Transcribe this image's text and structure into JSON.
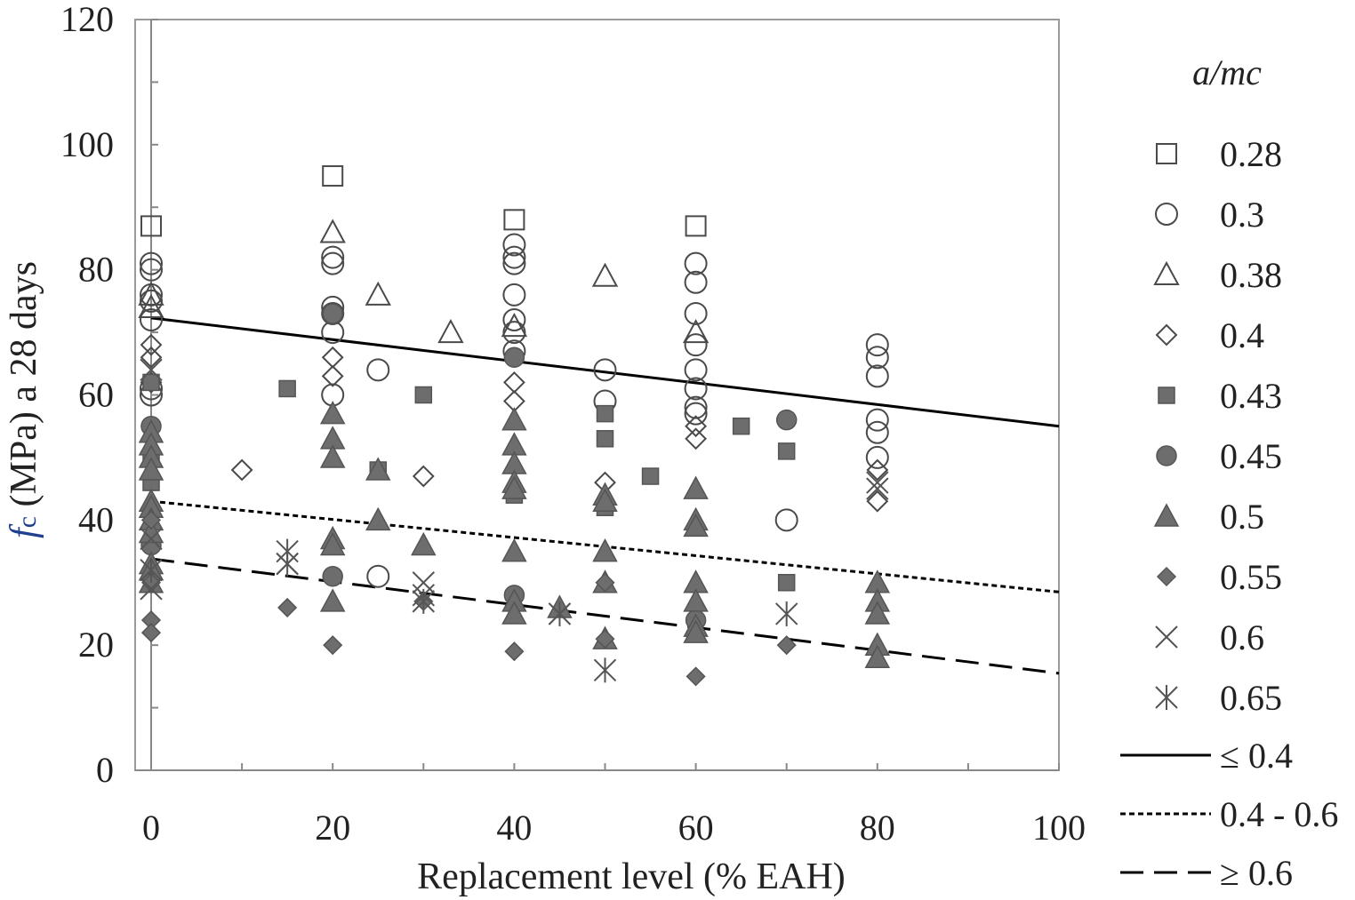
{
  "chart_data": {
    "type": "scatter",
    "xlabel": "Replacement level (% EAH)",
    "ylabel": {
      "symbol": "f",
      "subscript": "c",
      "rest": " (MPa) a 28 days"
    },
    "xlim": [
      0,
      100
    ],
    "ylim": [
      0,
      120
    ],
    "xticks": [
      "0",
      "20",
      "40",
      "60",
      "80",
      "100"
    ],
    "yticks": [
      "0",
      "20",
      "40",
      "60",
      "80",
      "100",
      "120"
    ],
    "legend_title": "a/mc",
    "series": [
      {
        "name": "0.28",
        "marker": "square-open",
        "points": [
          [
            0,
            87
          ],
          [
            20,
            95
          ],
          [
            40,
            88
          ],
          [
            60,
            87
          ]
        ]
      },
      {
        "name": "0.3",
        "marker": "circle-open",
        "points": [
          [
            0,
            81
          ],
          [
            0,
            80
          ],
          [
            0,
            76
          ],
          [
            0,
            75
          ],
          [
            0,
            72
          ],
          [
            0,
            61
          ],
          [
            0,
            60
          ],
          [
            20,
            82
          ],
          [
            20,
            81
          ],
          [
            20,
            74
          ],
          [
            20,
            73
          ],
          [
            20,
            70
          ],
          [
            20,
            60
          ],
          [
            25,
            64
          ],
          [
            25,
            31
          ],
          [
            40,
            84
          ],
          [
            40,
            82
          ],
          [
            40,
            81
          ],
          [
            40,
            76
          ],
          [
            40,
            72
          ],
          [
            40,
            70
          ],
          [
            40,
            67
          ],
          [
            50,
            64
          ],
          [
            50,
            59
          ],
          [
            60,
            81
          ],
          [
            60,
            78
          ],
          [
            60,
            73
          ],
          [
            60,
            68
          ],
          [
            60,
            64
          ],
          [
            60,
            61
          ],
          [
            60,
            58
          ],
          [
            60,
            57
          ],
          [
            70,
            40
          ],
          [
            80,
            68
          ],
          [
            80,
            66
          ],
          [
            80,
            63
          ],
          [
            80,
            56
          ],
          [
            80,
            54
          ],
          [
            80,
            50
          ]
        ]
      },
      {
        "name": "0.38",
        "marker": "triangle-open",
        "points": [
          [
            0,
            76
          ],
          [
            0,
            74
          ],
          [
            20,
            86
          ],
          [
            25,
            76
          ],
          [
            33,
            70
          ],
          [
            40,
            71
          ],
          [
            50,
            79
          ],
          [
            60,
            70
          ]
        ]
      },
      {
        "name": "0.4",
        "marker": "diamond-open",
        "points": [
          [
            0,
            68
          ],
          [
            0,
            66
          ],
          [
            0,
            62
          ],
          [
            10,
            48
          ],
          [
            20,
            66
          ],
          [
            20,
            63
          ],
          [
            30,
            47
          ],
          [
            40,
            62
          ],
          [
            40,
            59
          ],
          [
            50,
            46
          ],
          [
            60,
            55
          ],
          [
            60,
            53
          ],
          [
            80,
            48
          ],
          [
            80,
            43
          ]
        ]
      },
      {
        "name": "0.43",
        "marker": "square-filled",
        "points": [
          [
            0,
            62
          ],
          [
            0,
            50
          ],
          [
            0,
            46
          ],
          [
            15,
            61
          ],
          [
            25,
            48
          ],
          [
            30,
            60
          ],
          [
            40,
            44
          ],
          [
            50,
            57
          ],
          [
            50,
            53
          ],
          [
            50,
            42
          ],
          [
            55,
            47
          ],
          [
            65,
            55
          ],
          [
            70,
            51
          ],
          [
            70,
            30
          ]
        ]
      },
      {
        "name": "0.45",
        "marker": "circle-filled",
        "points": [
          [
            0,
            55
          ],
          [
            0,
            36
          ],
          [
            20,
            73
          ],
          [
            20,
            31
          ],
          [
            40,
            66
          ],
          [
            40,
            28
          ],
          [
            60,
            24
          ],
          [
            70,
            56
          ]
        ]
      },
      {
        "name": "0.5",
        "marker": "triangle-filled",
        "points": [
          [
            0,
            54
          ],
          [
            0,
            52
          ],
          [
            0,
            50
          ],
          [
            0,
            48
          ],
          [
            0,
            43
          ],
          [
            0,
            42
          ],
          [
            0,
            40
          ],
          [
            0,
            38
          ],
          [
            0,
            33
          ],
          [
            0,
            32
          ],
          [
            0,
            30
          ],
          [
            20,
            57
          ],
          [
            20,
            53
          ],
          [
            20,
            50
          ],
          [
            20,
            37
          ],
          [
            20,
            36
          ],
          [
            20,
            27
          ],
          [
            25,
            48
          ],
          [
            25,
            40
          ],
          [
            30,
            36
          ],
          [
            40,
            56
          ],
          [
            40,
            52
          ],
          [
            40,
            49
          ],
          [
            40,
            46
          ],
          [
            40,
            45
          ],
          [
            40,
            35
          ],
          [
            40,
            27
          ],
          [
            40,
            25
          ],
          [
            45,
            26
          ],
          [
            50,
            44
          ],
          [
            50,
            43
          ],
          [
            50,
            35
          ],
          [
            50,
            30
          ],
          [
            50,
            21
          ],
          [
            60,
            45
          ],
          [
            60,
            40
          ],
          [
            60,
            39
          ],
          [
            60,
            30
          ],
          [
            60,
            27
          ],
          [
            60,
            23
          ],
          [
            60,
            22
          ],
          [
            80,
            30
          ],
          [
            80,
            27
          ],
          [
            80,
            25
          ],
          [
            80,
            20
          ],
          [
            80,
            18
          ]
        ]
      },
      {
        "name": "0.55",
        "marker": "diamond-filled",
        "points": [
          [
            0,
            40
          ],
          [
            0,
            30
          ],
          [
            0,
            24
          ],
          [
            0,
            22
          ],
          [
            15,
            26
          ],
          [
            20,
            20
          ],
          [
            30,
            27
          ],
          [
            40,
            19
          ],
          [
            50,
            30
          ],
          [
            50,
            21
          ],
          [
            60,
            15
          ],
          [
            70,
            20
          ]
        ]
      },
      {
        "name": "0.6",
        "marker": "x",
        "points": [
          [
            0,
            64
          ],
          [
            0,
            37
          ],
          [
            0,
            29
          ],
          [
            15,
            33
          ],
          [
            30,
            30
          ],
          [
            30,
            28
          ],
          [
            45,
            25
          ],
          [
            80,
            46
          ],
          [
            80,
            45
          ]
        ]
      },
      {
        "name": "0.65",
        "marker": "asterisk",
        "points": [
          [
            0,
            32
          ],
          [
            15,
            35
          ],
          [
            15,
            33
          ],
          [
            30,
            27
          ],
          [
            45,
            25
          ],
          [
            50,
            16
          ],
          [
            70,
            25
          ]
        ]
      }
    ],
    "trendlines": [
      {
        "name": "≤ 0.4",
        "style": "solid",
        "x": [
          0,
          100
        ],
        "y": [
          72.3,
          55.0
        ]
      },
      {
        "name": "0.4 - 0.6",
        "style": "dotted",
        "x": [
          0,
          100
        ],
        "y": [
          43.0,
          28.5
        ]
      },
      {
        "name": "≥ 0.6",
        "style": "dashed",
        "x": [
          0,
          100
        ],
        "y": [
          33.8,
          15.5
        ]
      }
    ]
  }
}
